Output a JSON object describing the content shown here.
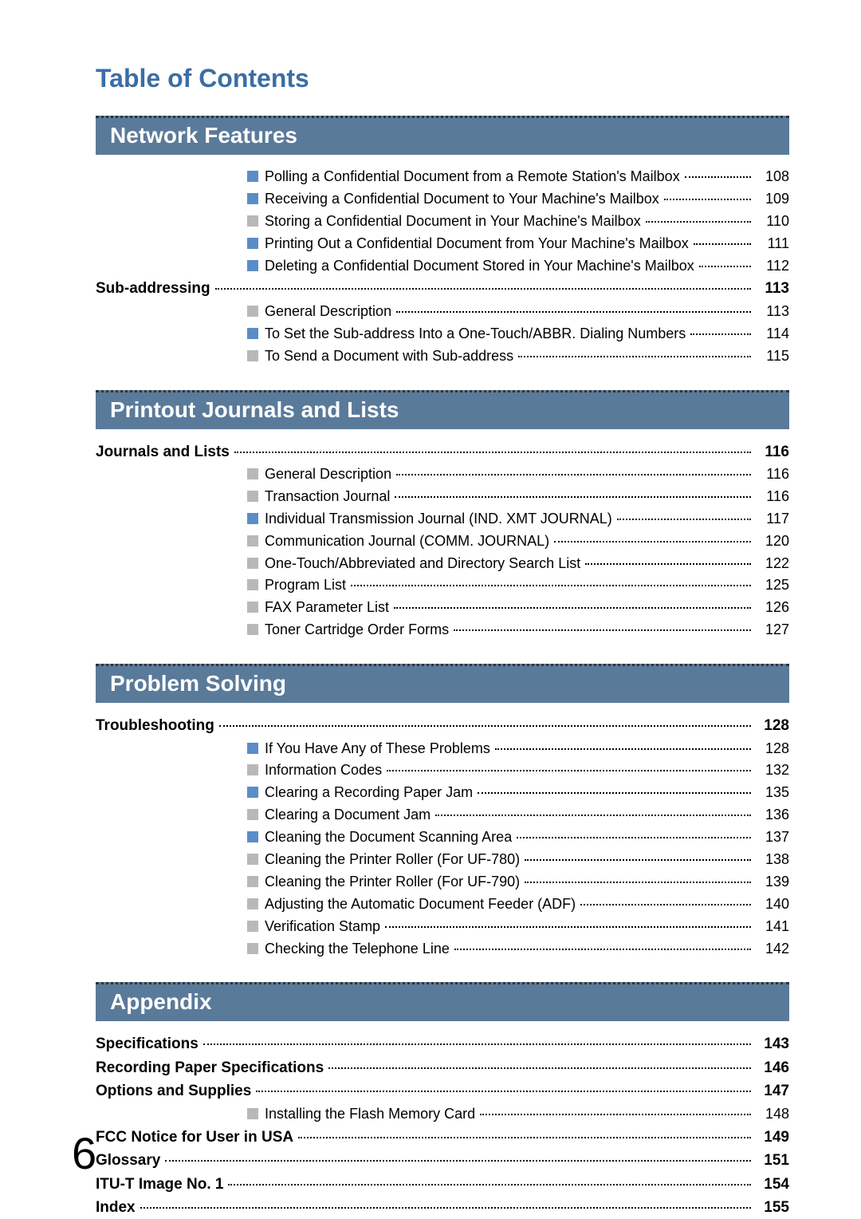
{
  "page_title": "Table of Contents",
  "page_number": "6",
  "bullet_colors": {
    "blue": "#5a8dc8",
    "gray": "#b8b8b8"
  },
  "banner_bg": "#5a7a9a",
  "sections": [
    {
      "heading": "Network Features",
      "rows": [
        {
          "type": "sub",
          "color": "blue",
          "label": "Polling a Confidential Document from a Remote Station's Mailbox",
          "page": "108"
        },
        {
          "type": "sub",
          "color": "blue",
          "label": "Receiving a Confidential Document to Your Machine's Mailbox",
          "page": "109"
        },
        {
          "type": "sub",
          "color": "gray",
          "label": "Storing a Confidential Document in Your Machine's Mailbox",
          "page": "110"
        },
        {
          "type": "sub",
          "color": "blue",
          "label": "Printing Out a Confidential Document from Your Machine's Mailbox",
          "page": "111"
        },
        {
          "type": "sub",
          "color": "blue",
          "label": "Deleting a Confidential Document Stored in Your Machine's Mailbox",
          "page": "112"
        },
        {
          "type": "major",
          "label": "Sub-addressing",
          "page": "113"
        },
        {
          "type": "sub",
          "color": "gray",
          "label": "General Description",
          "page": "113"
        },
        {
          "type": "sub",
          "color": "blue",
          "label": "To Set the Sub-address Into a One-Touch/ABBR. Dialing Numbers",
          "page": "114"
        },
        {
          "type": "sub",
          "color": "gray",
          "label": "To Send a Document with Sub-address",
          "page": "115"
        }
      ]
    },
    {
      "heading": "Printout Journals and Lists",
      "rows": [
        {
          "type": "major",
          "label": "Journals and Lists",
          "page": "116"
        },
        {
          "type": "sub",
          "color": "gray",
          "label": "General Description",
          "page": "116"
        },
        {
          "type": "sub",
          "color": "gray",
          "label": "Transaction Journal",
          "page": "116"
        },
        {
          "type": "sub",
          "color": "blue",
          "label": "Individual Transmission Journal (IND. XMT JOURNAL)",
          "page": "117"
        },
        {
          "type": "sub",
          "color": "gray",
          "label": "Communication Journal (COMM. JOURNAL)",
          "page": "120"
        },
        {
          "type": "sub",
          "color": "gray",
          "label": "One-Touch/Abbreviated and Directory Search List",
          "page": "122"
        },
        {
          "type": "sub",
          "color": "gray",
          "label": "Program List",
          "page": "125"
        },
        {
          "type": "sub",
          "color": "gray",
          "label": "FAX Parameter List",
          "page": "126"
        },
        {
          "type": "sub",
          "color": "gray",
          "label": "Toner Cartridge Order Forms",
          "page": "127"
        }
      ]
    },
    {
      "heading": "Problem Solving",
      "rows": [
        {
          "type": "major",
          "label": "Troubleshooting",
          "page": "128"
        },
        {
          "type": "sub",
          "color": "blue",
          "label": "If You Have Any of These Problems",
          "page": "128"
        },
        {
          "type": "sub",
          "color": "gray",
          "label": "Information Codes",
          "page": "132"
        },
        {
          "type": "sub",
          "color": "blue",
          "label": "Clearing a Recording Paper Jam",
          "page": "135"
        },
        {
          "type": "sub",
          "color": "gray",
          "label": "Clearing a Document Jam",
          "page": "136"
        },
        {
          "type": "sub",
          "color": "blue",
          "label": "Cleaning the Document Scanning Area",
          "page": "137"
        },
        {
          "type": "sub",
          "color": "gray",
          "label": "Cleaning the Printer Roller (For UF-780)",
          "page": "138"
        },
        {
          "type": "sub",
          "color": "gray",
          "label": "Cleaning the Printer Roller (For UF-790)",
          "page": "139"
        },
        {
          "type": "sub",
          "color": "gray",
          "label": "Adjusting the Automatic Document Feeder (ADF)",
          "page": "140"
        },
        {
          "type": "sub",
          "color": "gray",
          "label": "Verification Stamp",
          "page": "141"
        },
        {
          "type": "sub",
          "color": "gray",
          "label": "Checking the Telephone Line",
          "page": "142"
        }
      ]
    },
    {
      "heading": "Appendix",
      "rows": [
        {
          "type": "major",
          "label": "Specifications",
          "page": "143"
        },
        {
          "type": "major",
          "label": "Recording Paper Specifications",
          "page": "146"
        },
        {
          "type": "major",
          "label": "Options and Supplies",
          "page": "147"
        },
        {
          "type": "sub",
          "color": "gray",
          "label": "Installing the Flash Memory Card",
          "page": "148"
        },
        {
          "type": "major",
          "label": "FCC Notice for User in USA",
          "page": "149"
        },
        {
          "type": "major",
          "label": "Glossary",
          "page": "151"
        },
        {
          "type": "major",
          "label": "ITU-T Image No. 1",
          "page": "154"
        },
        {
          "type": "major",
          "label": "Index",
          "page": "155"
        }
      ]
    }
  ]
}
